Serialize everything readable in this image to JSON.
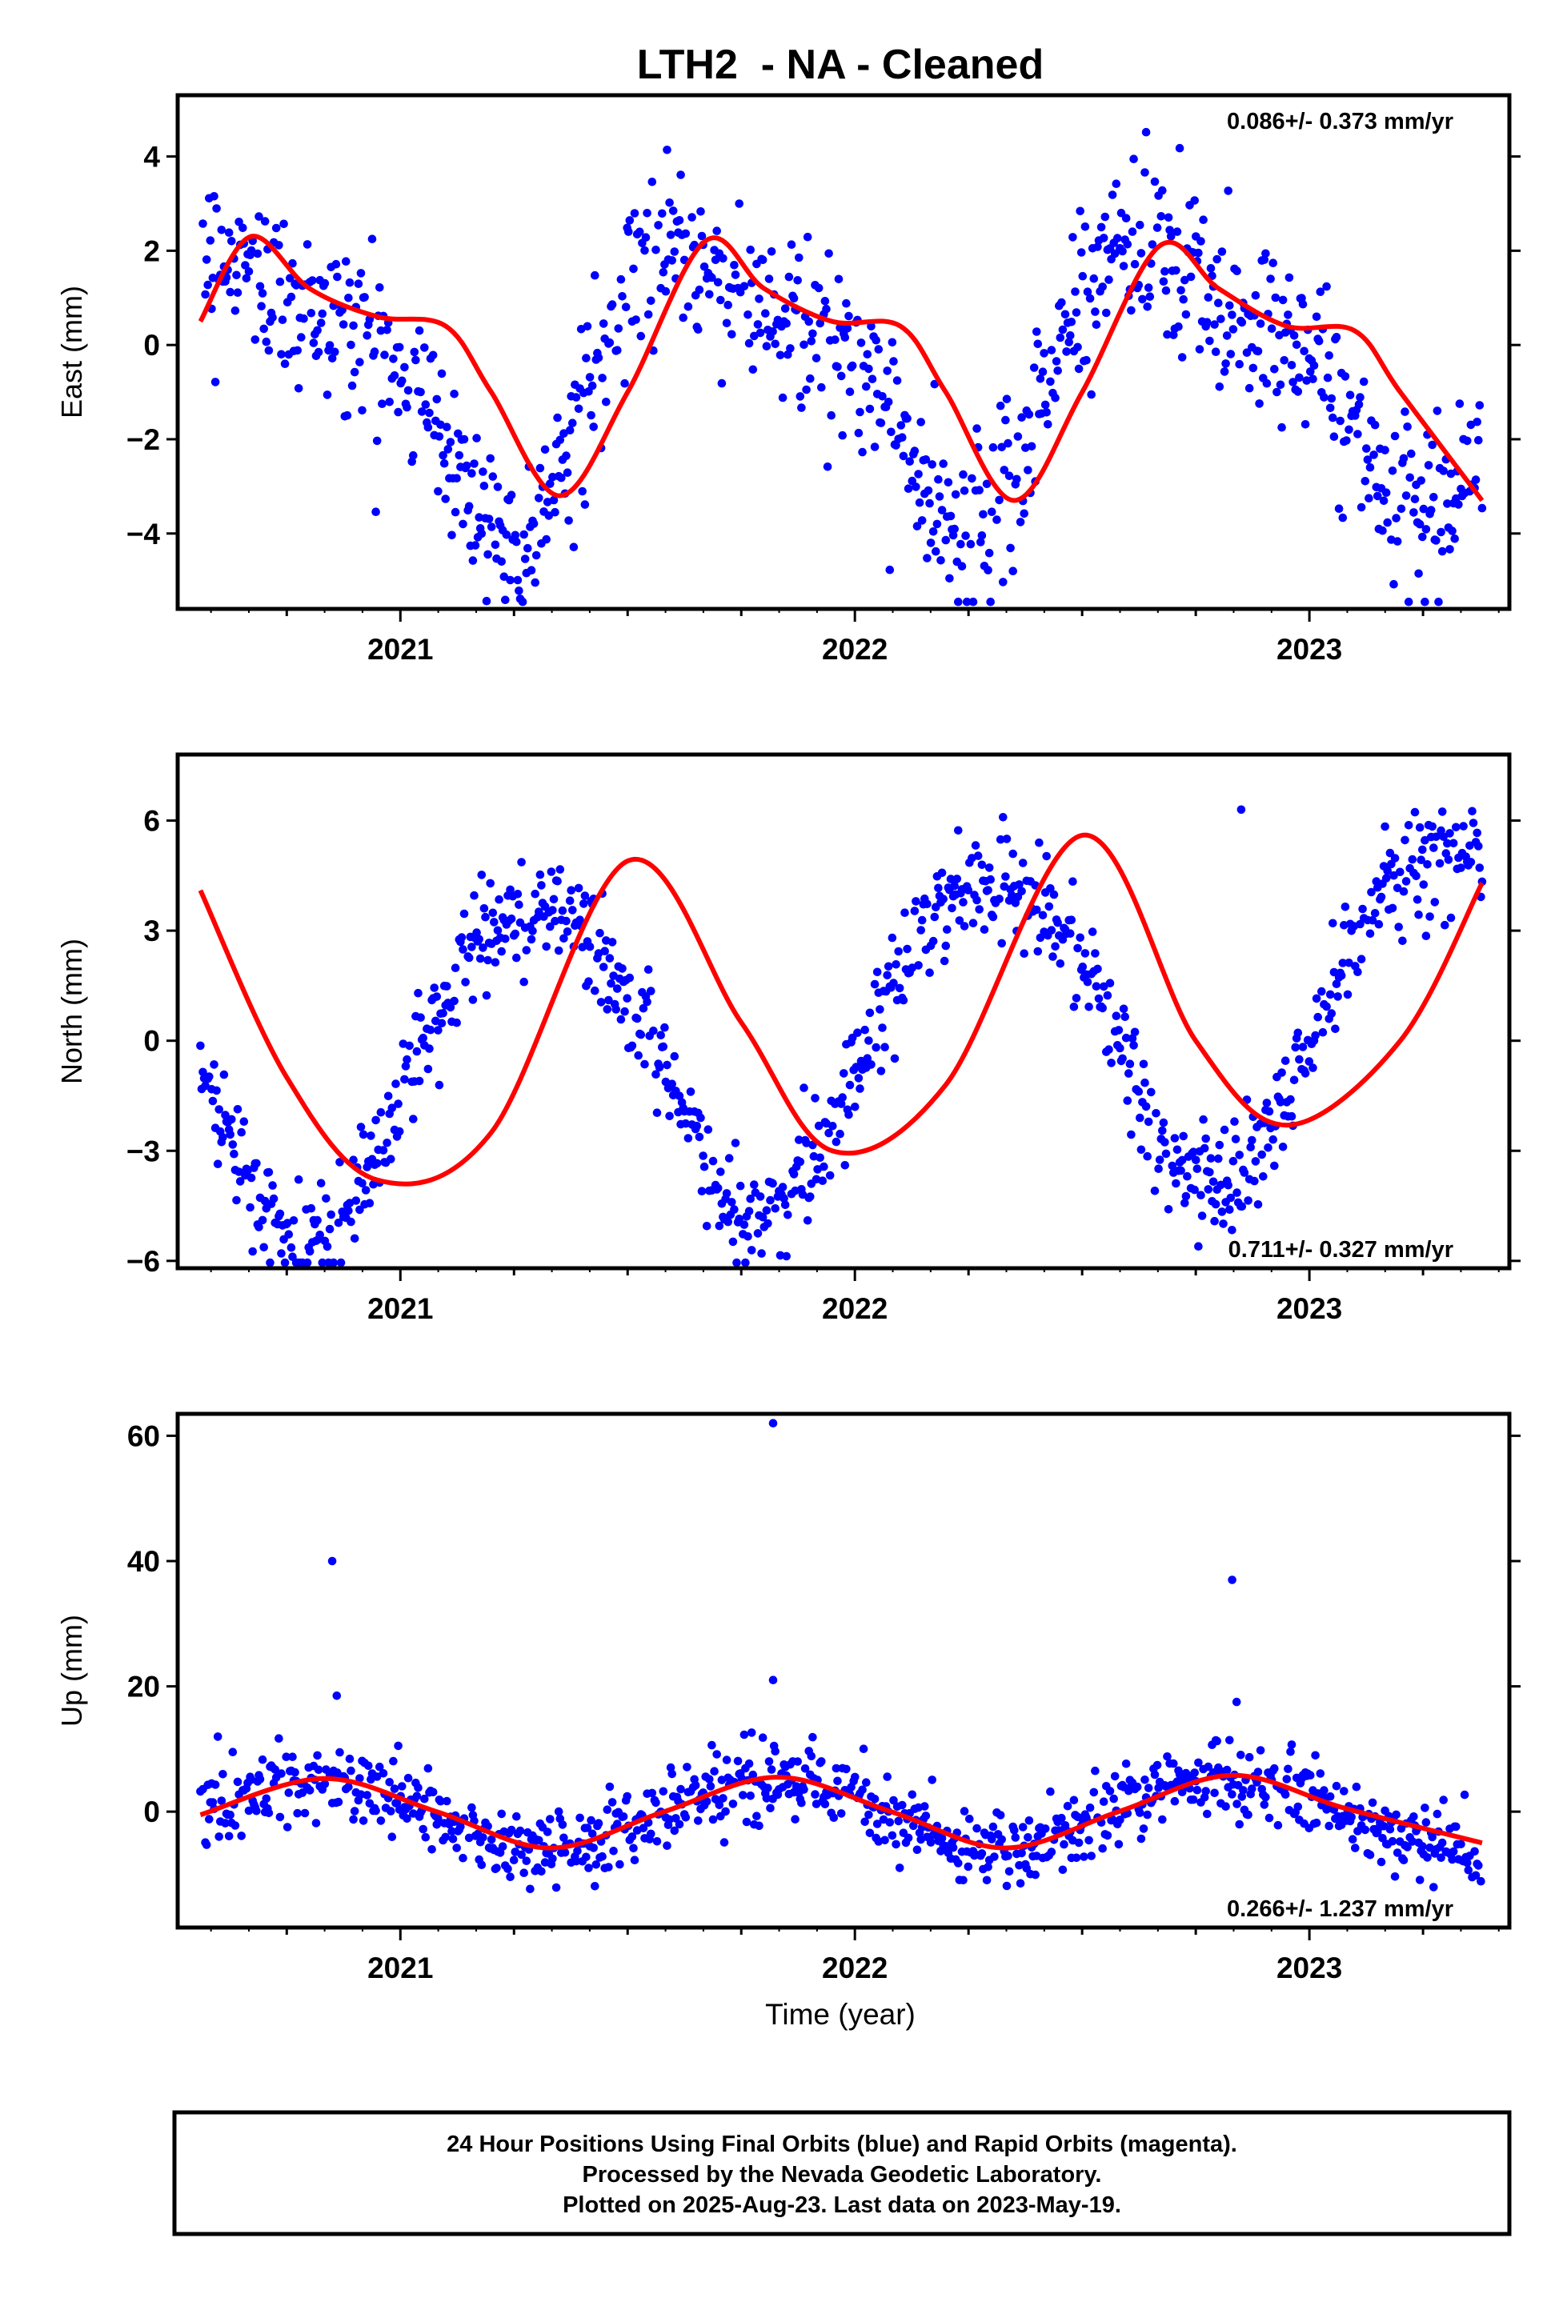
{
  "figure": {
    "title": "LTH2  - NA - Cleaned",
    "xlabel": "Time (year)",
    "footer": {
      "line1": "24 Hour Positions Using Final Orbits (blue) and Rapid Orbits (magenta).",
      "line2": "Processed by the Nevada Geodetic Laboratory.",
      "line3": "Plotted on 2025-Aug-23. Last data on 2023-May-19."
    },
    "colors": {
      "points": "#0000ff",
      "model": "#ff0000",
      "frame": "#000000"
    }
  },
  "chart_data": [
    {
      "type": "scatter",
      "ylabel": "East (mm)",
      "rate_label": "0.086+/- 0.373 mm/yr",
      "rate_position": "top-right",
      "xlim": [
        2020.51,
        2023.44
      ],
      "ylim": [
        -5.6,
        5.3
      ],
      "yticks": [
        4,
        2,
        0,
        -2,
        -4
      ],
      "ytick_labels": [
        "4",
        "2",
        "0",
        "−2",
        "−4"
      ],
      "xticks": [
        2021,
        2022,
        2023
      ],
      "xtick_labels": [
        "2021",
        "2022",
        "2023"
      ],
      "grid": false,
      "series": [
        {
          "kind": "points",
          "x_start": 2020.56,
          "x_end": 2023.38,
          "step_days": 1,
          "model": {
            "slope": 0.086,
            "offset": -0.5,
            "annual_cos": -0.7,
            "annual_sin": -2.5,
            "semi_cos": 0.9,
            "semi_sin": 0.3
          },
          "scatter_sd": 0.9,
          "outliers": []
        },
        {
          "kind": "line",
          "x": [
            2020.56,
            2020.67,
            2020.8,
            2020.95,
            2021.1,
            2021.2,
            2021.35,
            2021.5,
            2021.67,
            2021.8,
            2021.95,
            2022.1,
            2022.2,
            2022.35,
            2022.5,
            2022.67,
            2022.8,
            2022.95,
            2023.1,
            2023.2,
            2023.38
          ],
          "y": [
            0.5,
            2.3,
            1.2,
            0.6,
            0.4,
            -1.0,
            -3.2,
            -1.0,
            2.2,
            1.2,
            0.5,
            0.4,
            -1.0,
            -3.3,
            -1.0,
            2.1,
            1.2,
            0.4,
            0.3,
            -1.0,
            -3.3
          ]
        }
      ]
    },
    {
      "type": "scatter",
      "ylabel": "North (mm)",
      "rate_label": "0.711+/- 0.327 mm/yr",
      "rate_position": "bottom-right",
      "xlim": [
        2020.51,
        2023.44
      ],
      "ylim": [
        -6.2,
        7.8
      ],
      "yticks": [
        6,
        3,
        0,
        -3,
        -6
      ],
      "ytick_labels": [
        "6",
        "3",
        "0",
        "−3",
        "−6"
      ],
      "xticks": [
        2021,
        2022,
        2023
      ],
      "xtick_labels": [
        "2021",
        "2022",
        "2023"
      ],
      "grid": false,
      "series": [
        {
          "kind": "points",
          "x_start": 2020.56,
          "x_end": 2023.38,
          "step_days": 1,
          "model": {
            "slope": 0.711,
            "offset": 0.1,
            "annual_cos": -1.2,
            "annual_sin": 4.2,
            "semi_cos": 0.3,
            "semi_sin": 0.2
          },
          "scatter_sd": 0.8,
          "outliers": [
            [
              2022.85,
              6.3
            ]
          ]
        },
        {
          "kind": "line",
          "x": [
            2020.56,
            2020.75,
            2020.95,
            2021.2,
            2021.5,
            2021.75,
            2021.95,
            2022.2,
            2022.5,
            2022.75,
            2022.95,
            2023.2,
            2023.38
          ],
          "y": [
            4.1,
            -1.0,
            -3.8,
            -2.5,
            4.9,
            0.5,
            -3.0,
            -1.2,
            5.6,
            0.0,
            -2.3,
            0.0,
            4.3
          ]
        }
      ]
    },
    {
      "type": "scatter",
      "ylabel": "Up (mm)",
      "rate_label": "0.266+/- 1.237 mm/yr",
      "rate_position": "bottom-right",
      "xlim": [
        2020.51,
        2023.44
      ],
      "ylim": [
        -18.5,
        63.5
      ],
      "yticks": [
        60,
        40,
        20,
        0
      ],
      "ytick_labels": [
        "60",
        "40",
        "20",
        "0"
      ],
      "xticks": [
        2021,
        2022,
        2023
      ],
      "xtick_labels": [
        "2021",
        "2022",
        "2023"
      ],
      "grid": false,
      "series": [
        {
          "kind": "points",
          "x_start": 2020.56,
          "x_end": 2023.38,
          "step_days": 1,
          "model": {
            "slope": 0.266,
            "offset": -0.2,
            "annual_cos": 2.2,
            "annual_sin": -5.0,
            "semi_cos": 0.0,
            "semi_sin": 0.0
          },
          "scatter_sd": 3.0,
          "outliers": [
            [
              2020.85,
              40.0
            ],
            [
              2021.82,
              62.0
            ],
            [
              2022.83,
              37.0
            ],
            [
              2021.82,
              21.0
            ],
            [
              2020.86,
              18.5
            ],
            [
              2022.84,
              17.5
            ]
          ]
        },
        {
          "kind": "line",
          "x": [
            2020.56,
            2020.83,
            2021.08,
            2021.33,
            2021.58,
            2021.83,
            2022.08,
            2022.33,
            2022.58,
            2022.83,
            2023.08,
            2023.38
          ],
          "y": [
            -0.5,
            5.3,
            0.0,
            -5.8,
            0.0,
            5.5,
            0.0,
            -5.8,
            0.0,
            5.8,
            0.5,
            -5.0
          ]
        }
      ]
    }
  ]
}
